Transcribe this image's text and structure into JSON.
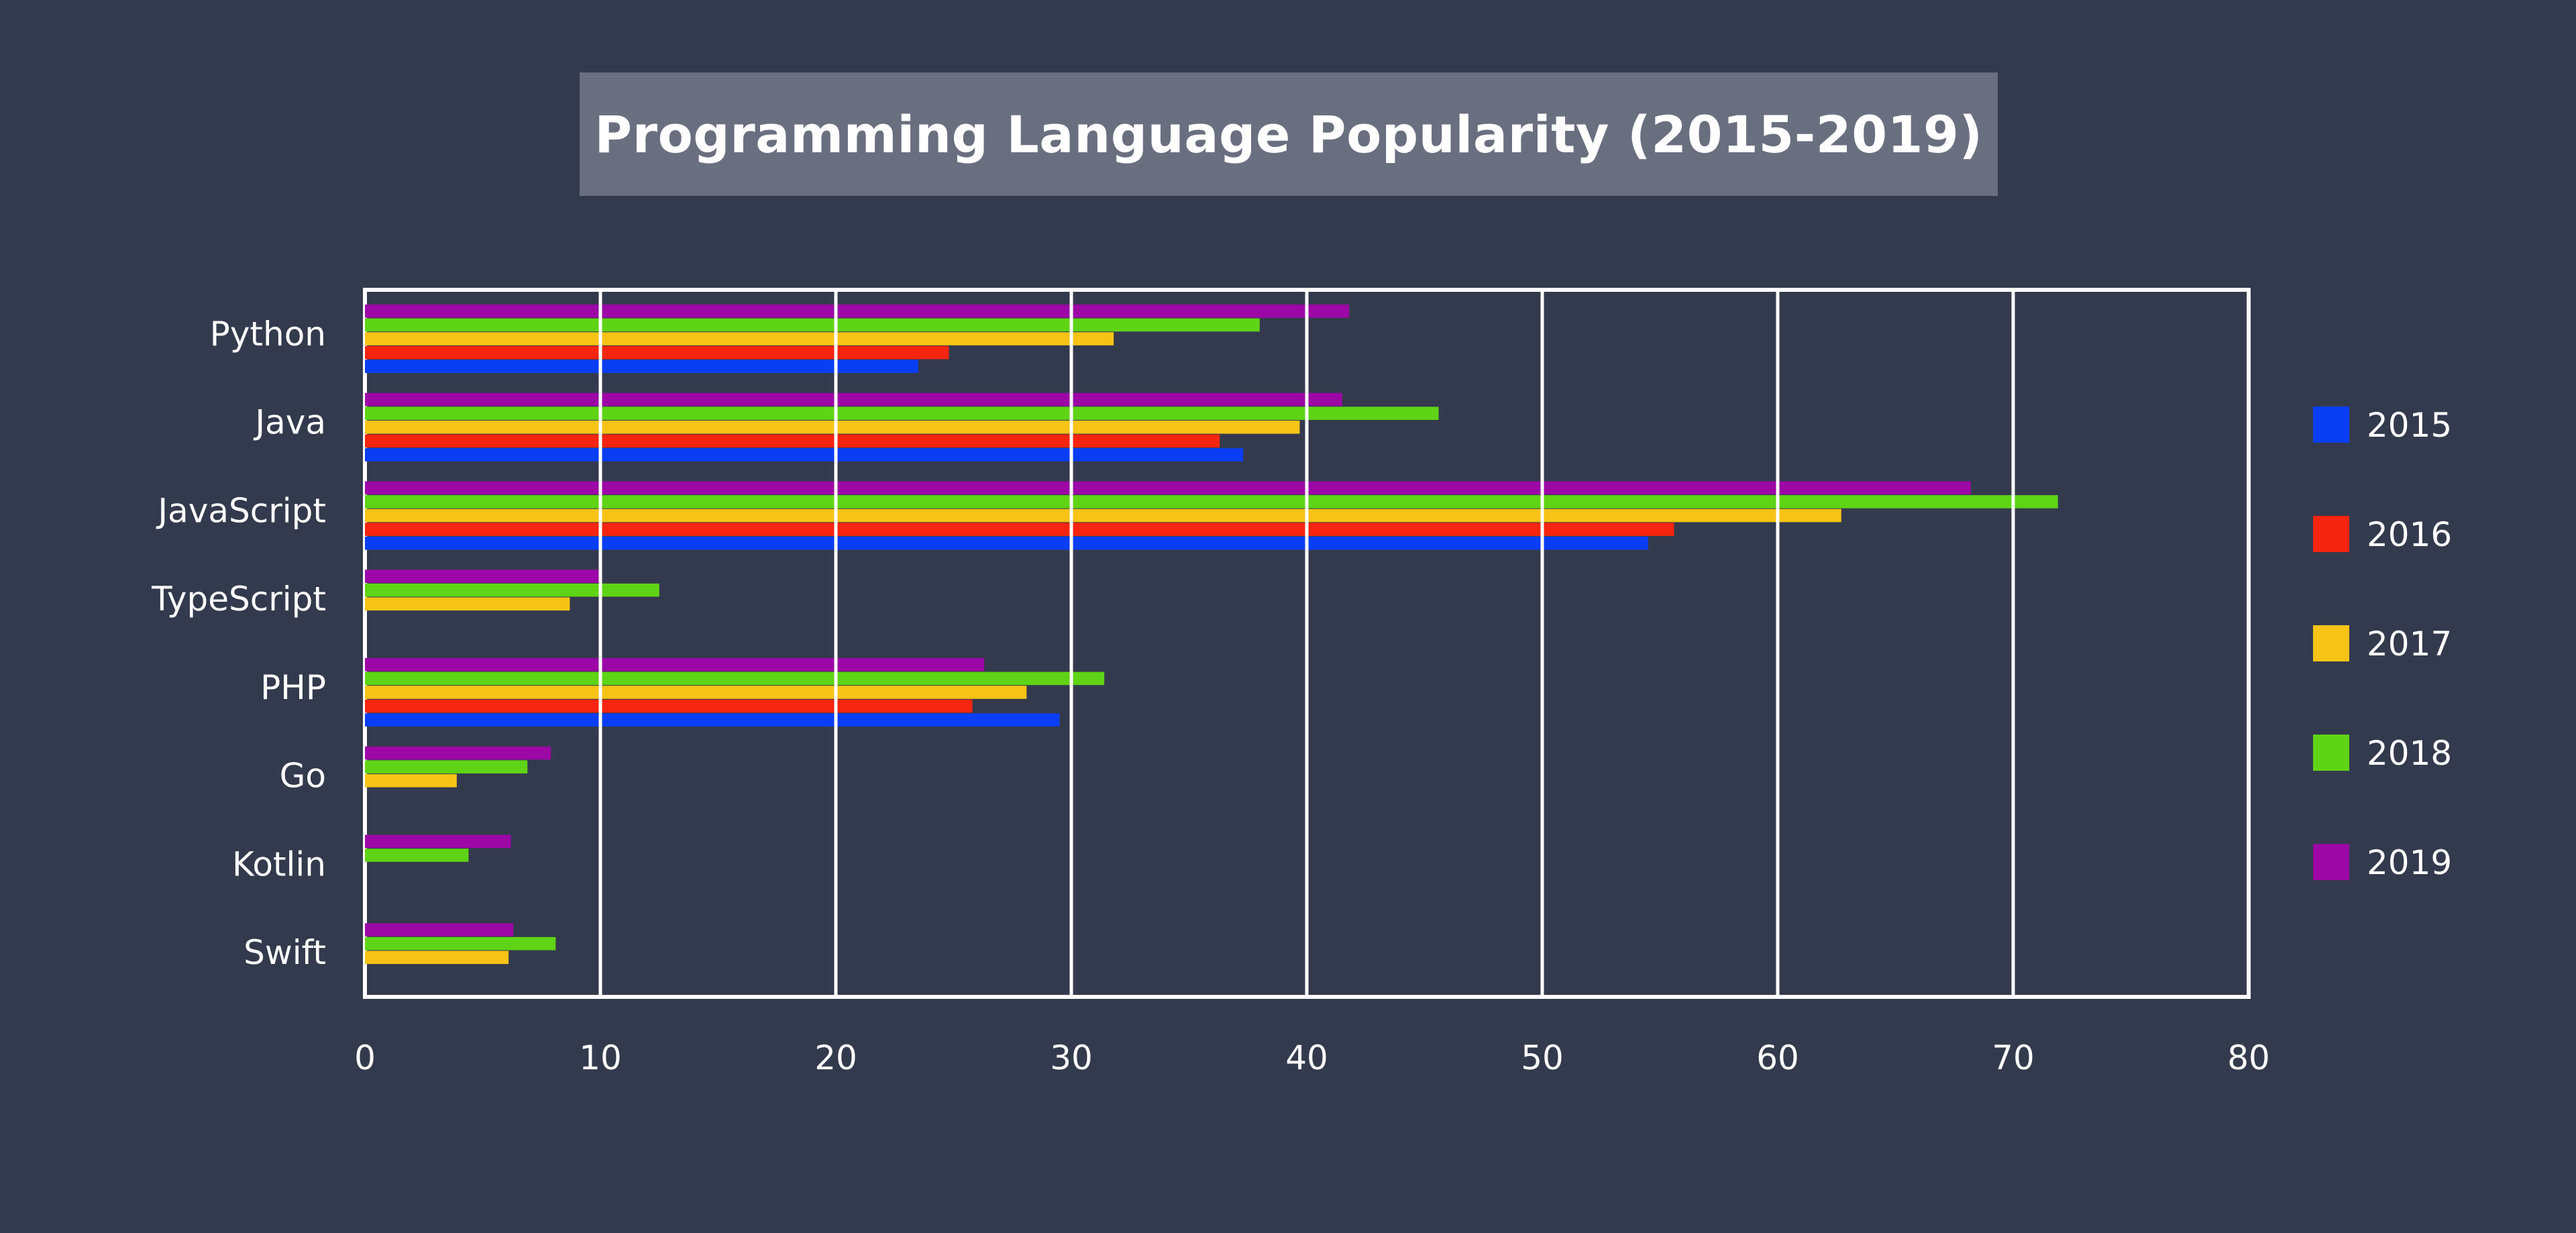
{
  "chart_data": {
    "type": "bar",
    "orientation": "horizontal",
    "title": "Programming Language Popularity (2015-2019)",
    "categories": [
      "Python",
      "Java",
      "JavaScript",
      "TypeScript",
      "PHP",
      "Go",
      "Kotlin",
      "Swift"
    ],
    "series": [
      {
        "name": "2015",
        "color": "#0a3ef5",
        "values": [
          23.5,
          37.3,
          54.5,
          null,
          29.5,
          null,
          null,
          null
        ]
      },
      {
        "name": "2016",
        "color": "#f5250f",
        "values": [
          24.8,
          36.3,
          55.6,
          null,
          25.8,
          null,
          null,
          null
        ]
      },
      {
        "name": "2017",
        "color": "#f7c316",
        "values": [
          31.8,
          39.7,
          62.7,
          8.7,
          28.1,
          3.9,
          null,
          6.1
        ]
      },
      {
        "name": "2018",
        "color": "#5fd416",
        "values": [
          38.0,
          45.6,
          71.9,
          12.5,
          31.4,
          6.9,
          4.4,
          8.1
        ]
      },
      {
        "name": "2019",
        "color": "#9c07a6",
        "values": [
          41.8,
          41.5,
          68.2,
          10.0,
          26.3,
          7.9,
          6.2,
          6.3
        ]
      }
    ],
    "xlim": [
      0,
      80
    ],
    "xticks": [
      "0",
      "10",
      "20",
      "30",
      "40",
      "50",
      "60",
      "70",
      "80"
    ],
    "grid": true,
    "legend_position": "right",
    "background": "#343a4d",
    "title_background": "#6a6f80"
  }
}
